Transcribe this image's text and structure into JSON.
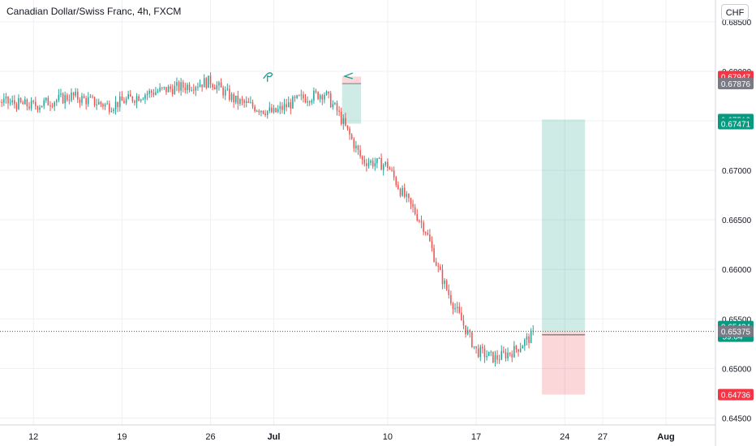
{
  "header": {
    "title": "Canadian Dollar/Swiss Franc, 4h, FXCM",
    "currency_button": "CHF"
  },
  "chart_data": {
    "type": "candlestick",
    "symbol": "CADCHF",
    "interval": "4h",
    "ylim": [
      0.6443,
      0.6872
    ],
    "y_ticks": [
      0.685,
      0.68,
      0.675,
      0.67,
      0.665,
      0.66,
      0.655,
      0.65,
      0.645
    ],
    "y_tick_labels": [
      "0.68500",
      "0.68000",
      "0.67500",
      "0.67000",
      "0.66500",
      "0.66000",
      "0.65500",
      "0.65000",
      "0.64500"
    ],
    "x_ticks": [
      {
        "label": "12",
        "day": 12
      },
      {
        "label": "19",
        "day": 19
      },
      {
        "label": "26",
        "day": 26
      },
      {
        "label": "Jul",
        "day": 31
      },
      {
        "label": "10",
        "day": 40
      },
      {
        "label": "17",
        "day": 47
      },
      {
        "label": "24",
        "day": 54
      },
      {
        "label": "27",
        "day": 57
      },
      {
        "label": "Aug",
        "day": 62
      }
    ],
    "price_path": [
      [
        0,
        0.6775
      ],
      [
        2,
        0.6793
      ],
      [
        4,
        0.6763
      ],
      [
        6,
        0.6785
      ],
      [
        9,
        0.677
      ],
      [
        12,
        0.6765
      ],
      [
        15,
        0.6775
      ],
      [
        18,
        0.6765
      ],
      [
        21,
        0.6778
      ],
      [
        24,
        0.6785
      ],
      [
        26,
        0.679
      ],
      [
        28,
        0.677
      ],
      [
        31,
        0.6758
      ],
      [
        33,
        0.6772
      ],
      [
        35,
        0.6778
      ],
      [
        36,
        0.676
      ],
      [
        38,
        0.671
      ],
      [
        40,
        0.6705
      ],
      [
        41,
        0.668
      ],
      [
        42.3,
        0.6655
      ],
      [
        43,
        0.664
      ],
      [
        44,
        0.66
      ],
      [
        45,
        0.657
      ],
      [
        47,
        0.6518
      ],
      [
        48.5,
        0.651
      ],
      [
        50,
        0.6518
      ],
      [
        51.5,
        0.6534
      ]
    ],
    "price_labels": [
      {
        "value": "0.67947",
        "color": "#f23645"
      },
      {
        "value": "0.67876",
        "color": "#787b86"
      },
      {
        "value": "0.67513",
        "color": "#089981"
      },
      {
        "value": "0.67471",
        "color": "#089981"
      },
      {
        "value": "0.65424",
        "sub": "59:04",
        "color": "#089981"
      },
      {
        "value": "0.65375",
        "color": "#787b86"
      },
      {
        "value": "0.64736",
        "color": "#f23645"
      }
    ],
    "positions": [
      {
        "type": "short",
        "entry": 0.67876,
        "stop": 0.67947,
        "target": 0.67471
      },
      {
        "type": "long",
        "entry": 0.65375,
        "stop": 0.64736,
        "target": 0.67513
      }
    ],
    "current_price": 0.65375,
    "colors": {
      "up": "#26a69a",
      "down": "#ef5350",
      "grid": "#eef0f3"
    }
  }
}
